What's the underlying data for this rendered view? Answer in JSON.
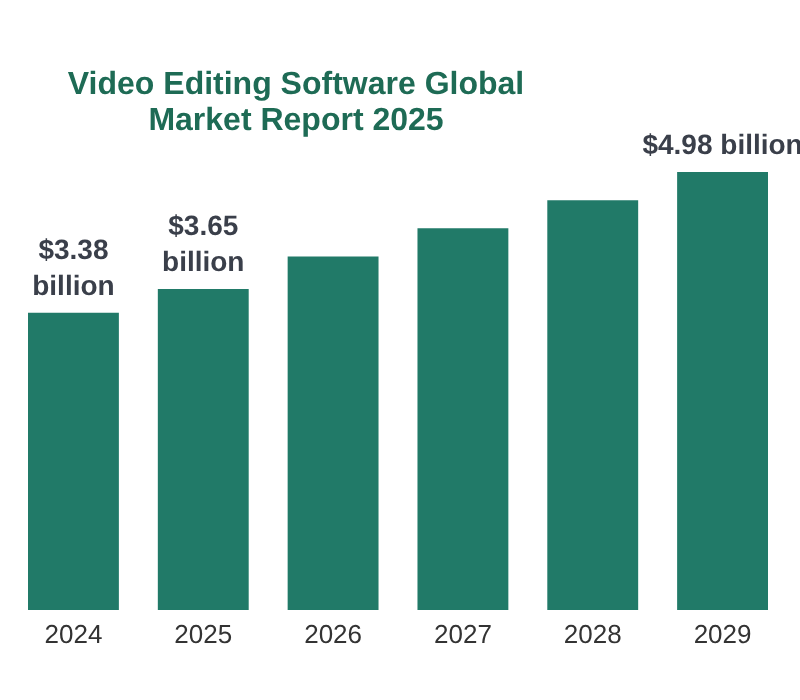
{
  "chart_data": {
    "type": "bar",
    "title": "Video Editing Software Global\nMarket Report 2025",
    "categories": [
      "2024",
      "2025",
      "2026",
      "2027",
      "2028",
      "2029"
    ],
    "values": [
      3.38,
      3.65,
      4.02,
      4.34,
      4.66,
      4.98
    ],
    "value_labels": [
      "$3.38 billion",
      "$3.65 billion",
      null,
      null,
      null,
      "$4.98 billion"
    ],
    "color": "#217a68",
    "grid": false
  }
}
